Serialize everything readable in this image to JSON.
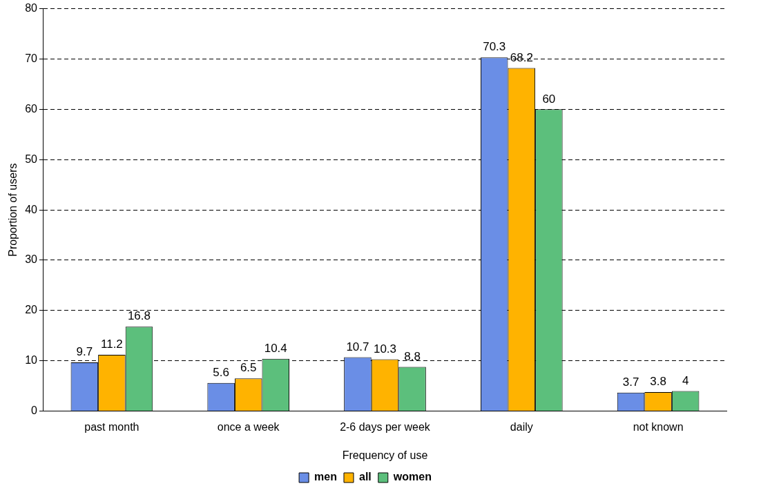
{
  "chart_data": {
    "type": "bar",
    "xlabel": "Frequency of use",
    "ylabel": "Proportion of users",
    "categories": [
      "past month",
      "once a week",
      "2-6 days per week",
      "daily",
      "not known"
    ],
    "series": [
      {
        "name": "men",
        "color": "#6a8ee6",
        "values": [
          9.7,
          5.6,
          10.7,
          70.3,
          3.7
        ]
      },
      {
        "name": "all",
        "color": "#ffb300",
        "values": [
          11.2,
          6.5,
          10.3,
          68.2,
          3.8
        ]
      },
      {
        "name": "women",
        "color": "#5cbf7c",
        "values": [
          16.8,
          10.4,
          8.8,
          60,
          4
        ]
      }
    ],
    "ylim": [
      0,
      80
    ],
    "yticks": [
      0,
      10,
      20,
      30,
      40,
      50,
      60,
      70,
      80
    ],
    "grid": "y",
    "legend": "bottom",
    "data_labels": true
  }
}
